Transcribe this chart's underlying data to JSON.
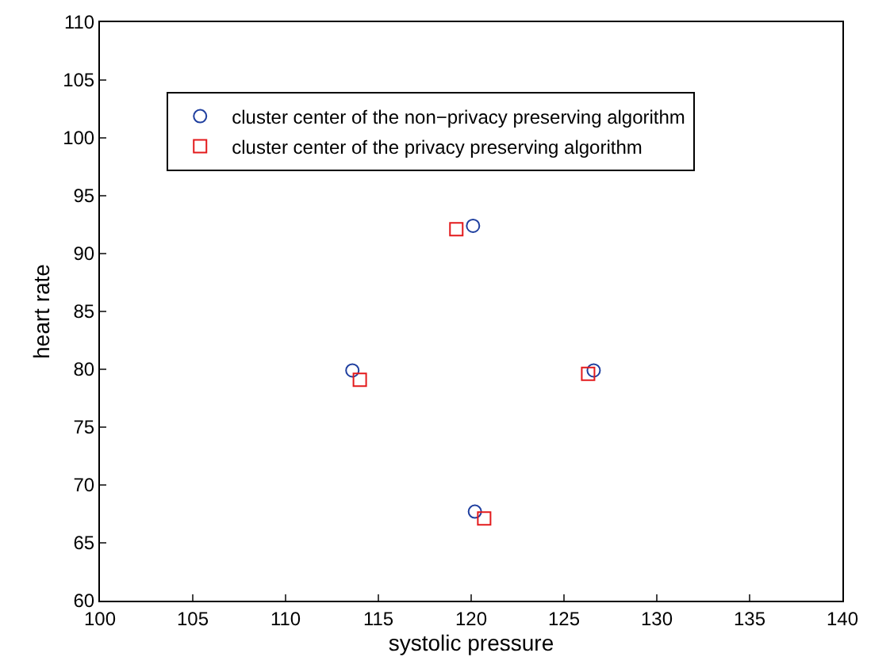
{
  "chart_data": {
    "type": "scatter",
    "xlabel": "systolic pressure",
    "ylabel": "heart rate",
    "xlim": [
      100,
      140
    ],
    "xticks": [
      100,
      105,
      110,
      115,
      120,
      125,
      130,
      135,
      140
    ],
    "ylim": [
      60,
      110
    ],
    "yticks": [
      60,
      65,
      70,
      75,
      80,
      85,
      90,
      95,
      100,
      105,
      110
    ],
    "legend": "top",
    "series": [
      {
        "name": "cluster center of the non−privacy preserving algorithm",
        "color": "#1f3f9f",
        "marker": "circle",
        "x": [
          120.1,
          113.6,
          126.6,
          120.2
        ],
        "values": [
          92.4,
          79.9,
          79.9,
          67.7
        ]
      },
      {
        "name": "cluster center of the privacy preserving algorithm",
        "color": "#e31a1c",
        "marker": "square",
        "x": [
          119.2,
          114.0,
          126.3,
          120.7
        ],
        "values": [
          92.1,
          79.1,
          79.6,
          67.1
        ]
      }
    ]
  }
}
